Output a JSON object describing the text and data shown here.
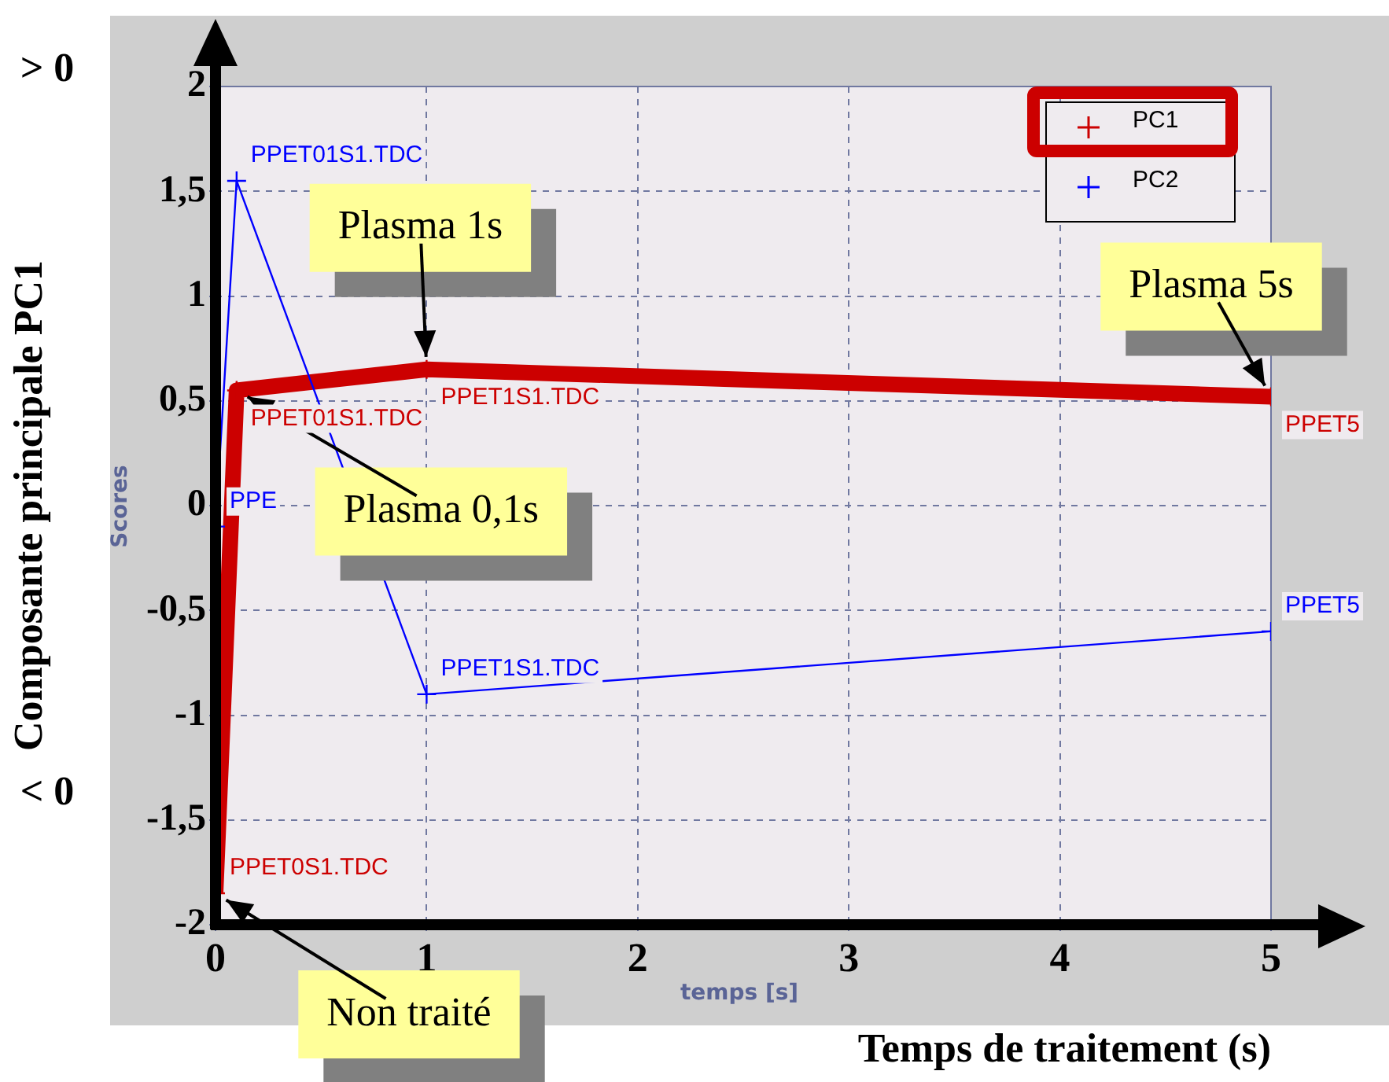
{
  "chart_data": {
    "type": "line",
    "xlabel": "Temps de traitement (s)",
    "ylabel": "Composante principale PC1",
    "x": [
      0,
      0.1,
      1,
      5
    ],
    "series": [
      {
        "name": "PC1",
        "color": "#cc0000",
        "values": [
          -1.85,
          0.55,
          0.65,
          0.52
        ],
        "value_labels": [
          "PPET0S1.TDC",
          "PPET01S1.TDC",
          "PPET1S1.TDC",
          "PPET5"
        ]
      },
      {
        "name": "PC2",
        "color": "#0000ff",
        "values": [
          -0.1,
          1.55,
          -0.9,
          -0.6
        ],
        "value_labels": [
          "PPE",
          "PPET01S1.TDC",
          "PPET1S1.TDC",
          "PPET5"
        ]
      }
    ],
    "xlim": [
      0,
      5
    ],
    "xticks": [
      0,
      1,
      2,
      3,
      4,
      5
    ],
    "ylim": [
      -2,
      2
    ],
    "yticks": [
      -2,
      {
        "value": -1.5,
        "label": "-1,5"
      },
      -1,
      {
        "value": -0.5,
        "label": "-0,5"
      },
      0,
      {
        "value": 0.5,
        "label": "0,5"
      },
      1,
      {
        "value": 1.5,
        "label": "1,5"
      },
      2
    ],
    "grid": true,
    "legend": "top right",
    "marker": "cross",
    "line_style": "solid",
    "annotations": [
      "> 0",
      "< 0",
      "Scores",
      "temps [s]",
      {
        "text": "Plasma 1s",
        "x": 1,
        "y": 0.65
      },
      {
        "text": "Plasma 0,1s",
        "x": 0.1,
        "y": 0.55
      },
      {
        "text": "Plasma 5s",
        "x": 5,
        "y": 0.52
      },
      {
        "text": "Non traité",
        "x": 0,
        "y": -1.85
      }
    ]
  }
}
